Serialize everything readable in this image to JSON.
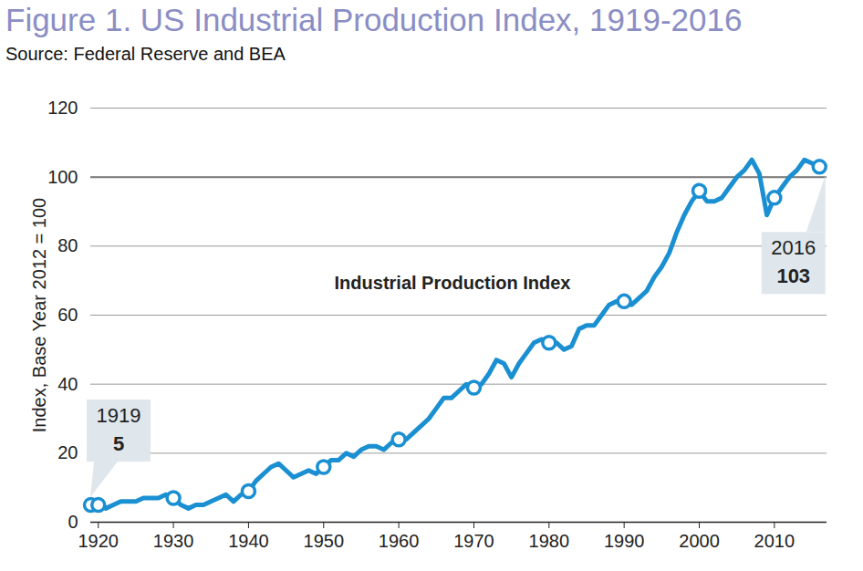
{
  "chart_data": {
    "type": "line",
    "title": "Figure 1. US Industrial Production Index, 1919-2016",
    "subtitle": "Source: Federal Reserve and BEA",
    "y_label": "Index, Base Year 2012 = 100",
    "x": [
      1919,
      1920,
      1921,
      1922,
      1923,
      1924,
      1925,
      1926,
      1927,
      1928,
      1929,
      1930,
      1931,
      1932,
      1933,
      1934,
      1935,
      1936,
      1937,
      1938,
      1939,
      1940,
      1941,
      1942,
      1943,
      1944,
      1945,
      1946,
      1947,
      1948,
      1949,
      1950,
      1951,
      1952,
      1953,
      1954,
      1955,
      1956,
      1957,
      1958,
      1959,
      1960,
      1961,
      1962,
      1963,
      1964,
      1965,
      1966,
      1967,
      1968,
      1969,
      1970,
      1971,
      1972,
      1973,
      1974,
      1975,
      1976,
      1977,
      1978,
      1979,
      1980,
      1981,
      1982,
      1983,
      1984,
      1985,
      1986,
      1987,
      1988,
      1989,
      1990,
      1991,
      1992,
      1993,
      1994,
      1995,
      1996,
      1997,
      1998,
      1999,
      2000,
      2001,
      2002,
      2003,
      2004,
      2005,
      2006,
      2007,
      2008,
      2009,
      2010,
      2011,
      2012,
      2013,
      2014,
      2015,
      2016
    ],
    "series": [
      {
        "name": "Industrial Production Index",
        "type": "line",
        "color": "#1a8fd1",
        "values": [
          5,
          5,
          4,
          5,
          6,
          6,
          6,
          7,
          7,
          7,
          8,
          7,
          5,
          4,
          5,
          5,
          6,
          7,
          8,
          6,
          8,
          9,
          12,
          14,
          16,
          17,
          15,
          13,
          14,
          15,
          14,
          16,
          18,
          18,
          20,
          19,
          21,
          22,
          22,
          21,
          23,
          24,
          24,
          26,
          28,
          30,
          33,
          36,
          36,
          38,
          40,
          39,
          40,
          43,
          47,
          46,
          42,
          46,
          49,
          52,
          53,
          52,
          52,
          50,
          51,
          56,
          57,
          57,
          60,
          63,
          64,
          64,
          63,
          65,
          67,
          71,
          74,
          78,
          84,
          89,
          93,
          96,
          93,
          93,
          94,
          97,
          100,
          102,
          105,
          101,
          89,
          94,
          97,
          100,
          102,
          105,
          104,
          103
        ]
      },
      {
        "type": "scatter",
        "marker": "circle",
        "color": "#1a8fd1",
        "values": [
          5,
          5,
          null,
          null,
          null,
          null,
          null,
          null,
          null,
          null,
          null,
          7,
          null,
          null,
          null,
          null,
          null,
          null,
          null,
          null,
          null,
          9,
          null,
          null,
          null,
          null,
          null,
          null,
          null,
          null,
          null,
          16,
          null,
          null,
          null,
          null,
          null,
          null,
          null,
          null,
          null,
          24,
          null,
          null,
          null,
          null,
          null,
          null,
          null,
          null,
          null,
          39,
          null,
          null,
          null,
          null,
          null,
          null,
          null,
          null,
          null,
          52,
          null,
          null,
          null,
          null,
          null,
          null,
          null,
          null,
          null,
          64,
          null,
          null,
          null,
          null,
          null,
          null,
          null,
          null,
          null,
          96,
          null,
          null,
          null,
          null,
          null,
          null,
          null,
          null,
          null,
          94,
          null,
          null,
          null,
          null,
          null,
          103
        ]
      }
    ],
    "xlim": [
      1919,
      2017
    ],
    "ylim": [
      0,
      120
    ],
    "xticks": [
      1920,
      1930,
      1940,
      1950,
      1960,
      1970,
      1980,
      1990,
      2000,
      2010
    ],
    "yticks": [
      0,
      20,
      40,
      60,
      80,
      100,
      120
    ],
    "grid": true,
    "hlines": [
      100
    ],
    "annotations": [
      {
        "x": 1919,
        "label": "1919",
        "value": 5
      },
      {
        "x": 2016,
        "label": "2016",
        "value": 103
      }
    ]
  }
}
